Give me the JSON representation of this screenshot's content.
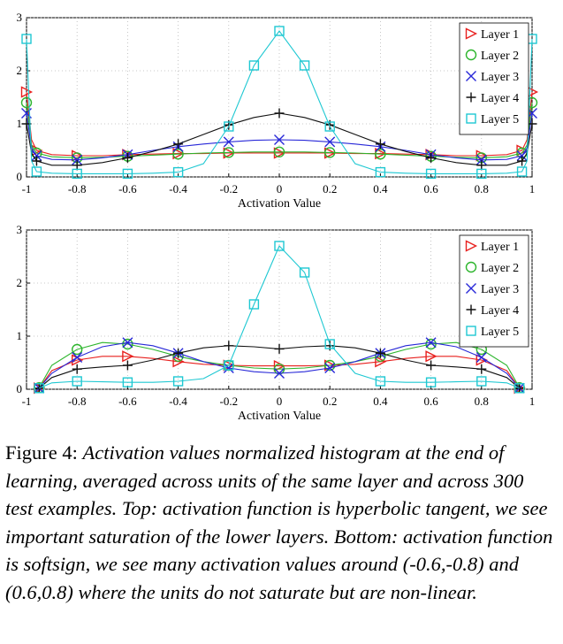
{
  "chart_data": [
    {
      "type": "line",
      "panel": "top",
      "xlabel": "Activation Value",
      "ylabel": "",
      "xlim": [
        -1,
        1
      ],
      "ylim": [
        0,
        3
      ],
      "xticks": [
        "-1",
        "-0.8",
        "-0.6",
        "-0.4",
        "-0.2",
        "0",
        "0.2",
        "0.4",
        "0.6",
        "0.8",
        "1"
      ],
      "yticks": [
        "0",
        "1",
        "2",
        "3"
      ],
      "grid": true,
      "legend_position": "top-right",
      "series": [
        {
          "name": "Layer 1",
          "color": "#e8201e",
          "marker": "triangle",
          "x": [
            -1,
            -0.98,
            -0.96,
            -0.9,
            -0.8,
            -0.7,
            -0.6,
            -0.5,
            -0.4,
            -0.3,
            -0.2,
            -0.1,
            0,
            0.1,
            0.2,
            0.3,
            0.4,
            0.5,
            0.6,
            0.7,
            0.8,
            0.9,
            0.96,
            0.98,
            1
          ],
          "y": [
            1.6,
            0.7,
            0.5,
            0.42,
            0.4,
            0.4,
            0.42,
            0.43,
            0.44,
            0.44,
            0.45,
            0.45,
            0.45,
            0.45,
            0.45,
            0.44,
            0.44,
            0.43,
            0.42,
            0.4,
            0.4,
            0.42,
            0.5,
            0.7,
            1.6
          ]
        },
        {
          "name": "Layer 2",
          "color": "#2db52d",
          "marker": "circle",
          "x": [
            -1,
            -0.98,
            -0.96,
            -0.9,
            -0.8,
            -0.7,
            -0.6,
            -0.5,
            -0.4,
            -0.3,
            -0.2,
            -0.1,
            0,
            0.1,
            0.2,
            0.3,
            0.4,
            0.5,
            0.6,
            0.7,
            0.8,
            0.9,
            0.96,
            0.98,
            1
          ],
          "y": [
            1.4,
            0.6,
            0.45,
            0.38,
            0.36,
            0.37,
            0.39,
            0.41,
            0.43,
            0.45,
            0.46,
            0.47,
            0.47,
            0.47,
            0.46,
            0.45,
            0.43,
            0.41,
            0.39,
            0.37,
            0.36,
            0.38,
            0.45,
            0.6,
            1.4
          ]
        },
        {
          "name": "Layer 3",
          "color": "#2828d8",
          "marker": "x",
          "x": [
            -1,
            -0.98,
            -0.96,
            -0.9,
            -0.8,
            -0.7,
            -0.6,
            -0.5,
            -0.4,
            -0.3,
            -0.2,
            -0.1,
            0,
            0.1,
            0.2,
            0.3,
            0.4,
            0.5,
            0.6,
            0.7,
            0.8,
            0.9,
            0.96,
            0.98,
            1
          ],
          "y": [
            1.2,
            0.55,
            0.4,
            0.33,
            0.32,
            0.36,
            0.42,
            0.5,
            0.57,
            0.62,
            0.66,
            0.69,
            0.7,
            0.69,
            0.66,
            0.62,
            0.57,
            0.5,
            0.42,
            0.36,
            0.32,
            0.33,
            0.4,
            0.55,
            1.2
          ]
        },
        {
          "name": "Layer 4",
          "color": "#111111",
          "marker": "plus",
          "x": [
            -1,
            -0.98,
            -0.96,
            -0.9,
            -0.8,
            -0.7,
            -0.6,
            -0.5,
            -0.4,
            -0.3,
            -0.2,
            -0.1,
            0,
            0.1,
            0.2,
            0.3,
            0.4,
            0.5,
            0.6,
            0.7,
            0.8,
            0.9,
            0.96,
            0.98,
            1
          ],
          "y": [
            1.0,
            0.45,
            0.3,
            0.22,
            0.22,
            0.27,
            0.36,
            0.48,
            0.62,
            0.8,
            0.98,
            1.12,
            1.2,
            1.12,
            0.98,
            0.8,
            0.62,
            0.48,
            0.36,
            0.27,
            0.22,
            0.22,
            0.3,
            0.45,
            1.0
          ]
        },
        {
          "name": "Layer 5",
          "color": "#1ec8d2",
          "marker": "square",
          "x": [
            -1,
            -0.98,
            -0.96,
            -0.9,
            -0.8,
            -0.7,
            -0.6,
            -0.5,
            -0.4,
            -0.3,
            -0.2,
            -0.1,
            0,
            0.1,
            0.2,
            0.3,
            0.4,
            0.5,
            0.6,
            0.7,
            0.8,
            0.9,
            0.96,
            0.98,
            1
          ],
          "y": [
            2.6,
            0.3,
            0.1,
            0.07,
            0.06,
            0.06,
            0.06,
            0.07,
            0.09,
            0.25,
            0.95,
            2.1,
            2.75,
            2.1,
            0.95,
            0.25,
            0.09,
            0.07,
            0.06,
            0.06,
            0.06,
            0.07,
            0.1,
            0.3,
            2.6
          ]
        }
      ]
    },
    {
      "type": "line",
      "panel": "bottom",
      "xlabel": "Activation Value",
      "ylabel": "",
      "xlim": [
        -1,
        1
      ],
      "ylim": [
        0,
        3
      ],
      "xticks": [
        "-1",
        "-0.8",
        "-0.6",
        "-0.4",
        "-0.2",
        "0",
        "0.2",
        "0.4",
        "0.6",
        "0.8",
        "1"
      ],
      "yticks": [
        "0",
        "1",
        "2",
        "3"
      ],
      "grid": true,
      "legend_position": "top-right",
      "series": [
        {
          "name": "Layer 1",
          "color": "#e8201e",
          "marker": "triangle",
          "x": [
            -0.95,
            -0.9,
            -0.8,
            -0.7,
            -0.6,
            -0.5,
            -0.4,
            -0.3,
            -0.2,
            -0.1,
            0,
            0.1,
            0.2,
            0.3,
            0.4,
            0.5,
            0.6,
            0.7,
            0.8,
            0.9,
            0.95
          ],
          "y": [
            0.02,
            0.35,
            0.55,
            0.62,
            0.62,
            0.58,
            0.52,
            0.47,
            0.45,
            0.44,
            0.44,
            0.44,
            0.45,
            0.47,
            0.52,
            0.58,
            0.62,
            0.62,
            0.55,
            0.35,
            0.02
          ]
        },
        {
          "name": "Layer 2",
          "color": "#2db52d",
          "marker": "circle",
          "x": [
            -0.95,
            -0.9,
            -0.8,
            -0.7,
            -0.6,
            -0.5,
            -0.4,
            -0.3,
            -0.2,
            -0.1,
            0,
            0.1,
            0.2,
            0.3,
            0.4,
            0.5,
            0.6,
            0.7,
            0.8,
            0.9,
            0.95
          ],
          "y": [
            0.03,
            0.45,
            0.75,
            0.88,
            0.85,
            0.75,
            0.62,
            0.52,
            0.45,
            0.4,
            0.38,
            0.4,
            0.45,
            0.52,
            0.62,
            0.75,
            0.85,
            0.88,
            0.75,
            0.45,
            0.03
          ]
        },
        {
          "name": "Layer 3",
          "color": "#2828d8",
          "marker": "x",
          "x": [
            -0.95,
            -0.9,
            -0.8,
            -0.7,
            -0.6,
            -0.5,
            -0.4,
            -0.3,
            -0.2,
            -0.1,
            0,
            0.1,
            0.2,
            0.3,
            0.4,
            0.5,
            0.6,
            0.7,
            0.8,
            0.9,
            0.95
          ],
          "y": [
            0.02,
            0.3,
            0.6,
            0.8,
            0.88,
            0.82,
            0.68,
            0.52,
            0.4,
            0.33,
            0.3,
            0.33,
            0.4,
            0.52,
            0.68,
            0.82,
            0.88,
            0.8,
            0.6,
            0.3,
            0.02
          ]
        },
        {
          "name": "Layer 4",
          "color": "#111111",
          "marker": "plus",
          "x": [
            -0.95,
            -0.9,
            -0.8,
            -0.7,
            -0.6,
            -0.5,
            -0.4,
            -0.3,
            -0.2,
            -0.1,
            0,
            0.1,
            0.2,
            0.3,
            0.4,
            0.5,
            0.6,
            0.7,
            0.8,
            0.9,
            0.95
          ],
          "y": [
            0.02,
            0.22,
            0.38,
            0.42,
            0.45,
            0.55,
            0.68,
            0.78,
            0.82,
            0.8,
            0.76,
            0.8,
            0.82,
            0.78,
            0.68,
            0.55,
            0.45,
            0.42,
            0.38,
            0.22,
            0.02
          ]
        },
        {
          "name": "Layer 5",
          "color": "#1ec8d2",
          "marker": "square",
          "x": [
            -0.95,
            -0.9,
            -0.8,
            -0.7,
            -0.6,
            -0.5,
            -0.4,
            -0.3,
            -0.2,
            -0.1,
            0,
            0.1,
            0.2,
            0.3,
            0.4,
            0.5,
            0.6,
            0.7,
            0.8,
            0.9,
            0.95
          ],
          "y": [
            0.02,
            0.12,
            0.15,
            0.14,
            0.13,
            0.13,
            0.15,
            0.2,
            0.45,
            1.6,
            2.7,
            2.2,
            0.85,
            0.3,
            0.15,
            0.13,
            0.13,
            0.14,
            0.15,
            0.12,
            0.02
          ]
        }
      ]
    }
  ],
  "caption": {
    "label": "Figure 4:",
    "text": "Activation values normalized histogram at the end of learning, averaged across units of the same layer and across 300 test examples. Top: activation function is hyperbolic tangent, we see important saturation of the lower layers. Bottom: activation function is softsign, we see many activation values around (-0.6,-0.8) and (0.6,0.8) where the units do not saturate but are non-linear."
  }
}
